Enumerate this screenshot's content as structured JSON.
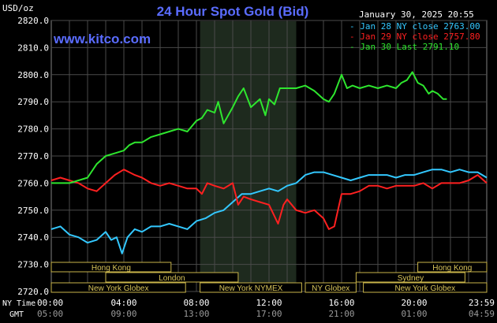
{
  "header": {
    "unit": "USD/oz",
    "title": "24 Hour Spot Gold (Bid)",
    "site": "www.kitco.com",
    "timestamp": "January 30, 2025 20:55"
  },
  "legend": [
    {
      "label": "Jan 28 NY close 2763.00",
      "color": "#33c8ff"
    },
    {
      "label": "Jan 29 NY close 2757.80",
      "color": "#ff2020"
    },
    {
      "label": "Jan 30 Last 2791.10",
      "color": "#2ee62e"
    }
  ],
  "row_labels": {
    "ny_time": "NY Time",
    "gmt": "GMT"
  },
  "sessions": [
    {
      "label": "Hong Kong",
      "start": 0,
      "end": 6.6,
      "row": 0
    },
    {
      "label": "Hong Kong",
      "start": 20.2,
      "end": 24,
      "row": 0
    },
    {
      "label": "London",
      "start": 3.0,
      "end": 10.3,
      "row": 1
    },
    {
      "label": "Sydney",
      "start": 16.8,
      "end": 22.8,
      "row": 1
    },
    {
      "label": "New York Globex",
      "start": 0,
      "end": 7.4,
      "row": 2
    },
    {
      "label": "New York NYMEX",
      "start": 8.2,
      "end": 13.8,
      "row": 2
    },
    {
      "label": "NY Globex",
      "start": 14.0,
      "end": 16.8,
      "row": 2
    },
    {
      "label": "New York Globex",
      "start": 17.2,
      "end": 24,
      "row": 2
    }
  ],
  "chart_data": {
    "type": "line",
    "title": "24 Hour Spot Gold (Bid)",
    "ylabel": "USD/oz",
    "ylim": [
      2720,
      2820
    ],
    "xlim": [
      0,
      24
    ],
    "yticks": [
      "2720.0",
      "2730.0",
      "2740.0",
      "2750.0",
      "2760.0",
      "2770.0",
      "2780.0",
      "2790.0",
      "2800.0",
      "2810.0",
      "2820.0"
    ],
    "x_tick_hours": [
      0,
      4,
      8,
      12,
      16,
      20,
      24
    ],
    "ny_time_ticks": [
      "00:00",
      "04:00",
      "08:00",
      "12:00",
      "16:00",
      "20:00",
      "23:59"
    ],
    "gmt_ticks": [
      "05:00",
      "09:00",
      "13:00",
      "17:00",
      "21:00",
      "01:00",
      "04:59"
    ],
    "highlight_hours": [
      8.2,
      13.5
    ],
    "grid": true,
    "series": [
      {
        "name": "Jan 28 NY close 2763.00",
        "color": "#33c8ff",
        "x": [
          0,
          0.5,
          1,
          1.5,
          2,
          2.5,
          3,
          3.3,
          3.6,
          3.9,
          4.2,
          4.6,
          5,
          5.5,
          6,
          6.5,
          7,
          7.5,
          8,
          8.5,
          9,
          9.5,
          10,
          10.5,
          11,
          11.5,
          12,
          12.5,
          13,
          13.5,
          14,
          14.5,
          15,
          15.5,
          16,
          16.5,
          17,
          17.5,
          18,
          18.5,
          19,
          19.5,
          20,
          20.5,
          21,
          21.5,
          22,
          22.5,
          23,
          23.5,
          24
        ],
        "y": [
          2743,
          2744,
          2741,
          2740,
          2738,
          2739,
          2742,
          2739,
          2740,
          2734,
          2740,
          2743,
          2742,
          2744,
          2744,
          2745,
          2744,
          2743,
          2746,
          2747,
          2749,
          2750,
          2753,
          2756,
          2756,
          2757,
          2758,
          2757,
          2759,
          2760,
          2763,
          2764,
          2764,
          2763,
          2762,
          2761,
          2762,
          2763,
          2763,
          2763,
          2762,
          2763,
          2763,
          2764,
          2765,
          2765,
          2764,
          2765,
          2764,
          2764,
          2762
        ]
      },
      {
        "name": "Jan 29 NY close 2757.80",
        "color": "#ff2020",
        "x": [
          0,
          0.5,
          1,
          1.5,
          2,
          2.5,
          3,
          3.5,
          4,
          4.3,
          4.6,
          5,
          5.5,
          6,
          6.5,
          7,
          7.5,
          8,
          8.3,
          8.6,
          9,
          9.5,
          10,
          10.3,
          10.6,
          11,
          11.5,
          12,
          12.5,
          12.8,
          13,
          13.5,
          14,
          14.5,
          15,
          15.3,
          15.6,
          16,
          16.5,
          17,
          17.5,
          18,
          18.5,
          19,
          19.5,
          20,
          20.5,
          21,
          21.5,
          22,
          22.5,
          23,
          23.5,
          24
        ],
        "y": [
          2761,
          2762,
          2761,
          2760,
          2758,
          2757,
          2760,
          2763,
          2765,
          2764,
          2763,
          2762,
          2760,
          2759,
          2760,
          2759,
          2758,
          2758,
          2756,
          2760,
          2759,
          2758,
          2760,
          2752,
          2755,
          2754,
          2753,
          2752,
          2745,
          2752,
          2754,
          2750,
          2749,
          2750,
          2747,
          2743,
          2744,
          2756,
          2756,
          2757,
          2759,
          2759,
          2758,
          2759,
          2759,
          2759,
          2760,
          2758,
          2760,
          2760,
          2760,
          2761,
          2763,
          2760
        ]
      },
      {
        "name": "Jan 30 Last 2791.10",
        "color": "#2ee62e",
        "x": [
          0,
          0.5,
          1,
          1.5,
          2,
          2.5,
          3,
          3.5,
          4,
          4.3,
          4.6,
          5,
          5.5,
          6,
          6.5,
          7,
          7.5,
          8,
          8.3,
          8.6,
          9,
          9.2,
          9.5,
          10,
          10.3,
          10.6,
          11,
          11.5,
          11.8,
          12,
          12.3,
          12.6,
          13,
          13.5,
          14,
          14.5,
          15,
          15.3,
          15.6,
          16,
          16.3,
          16.6,
          17,
          17.5,
          18,
          18.5,
          19,
          19.3,
          19.6,
          19.9,
          20.2,
          20.5,
          20.8,
          21,
          21.3,
          21.6,
          21.8
        ],
        "y": [
          2760,
          2760,
          2760,
          2761,
          2762,
          2767,
          2770,
          2771,
          2772,
          2774,
          2775,
          2775,
          2777,
          2778,
          2779,
          2780,
          2779,
          2783,
          2784,
          2787,
          2786,
          2790,
          2782,
          2788,
          2792,
          2795,
          2788,
          2791,
          2785,
          2791,
          2789,
          2795,
          2795,
          2795,
          2796,
          2794,
          2791,
          2790,
          2793,
          2800,
          2795,
          2796,
          2795,
          2796,
          2795,
          2796,
          2795,
          2797,
          2798,
          2801,
          2797,
          2796,
          2793,
          2794,
          2793,
          2791,
          2791
        ]
      }
    ]
  }
}
